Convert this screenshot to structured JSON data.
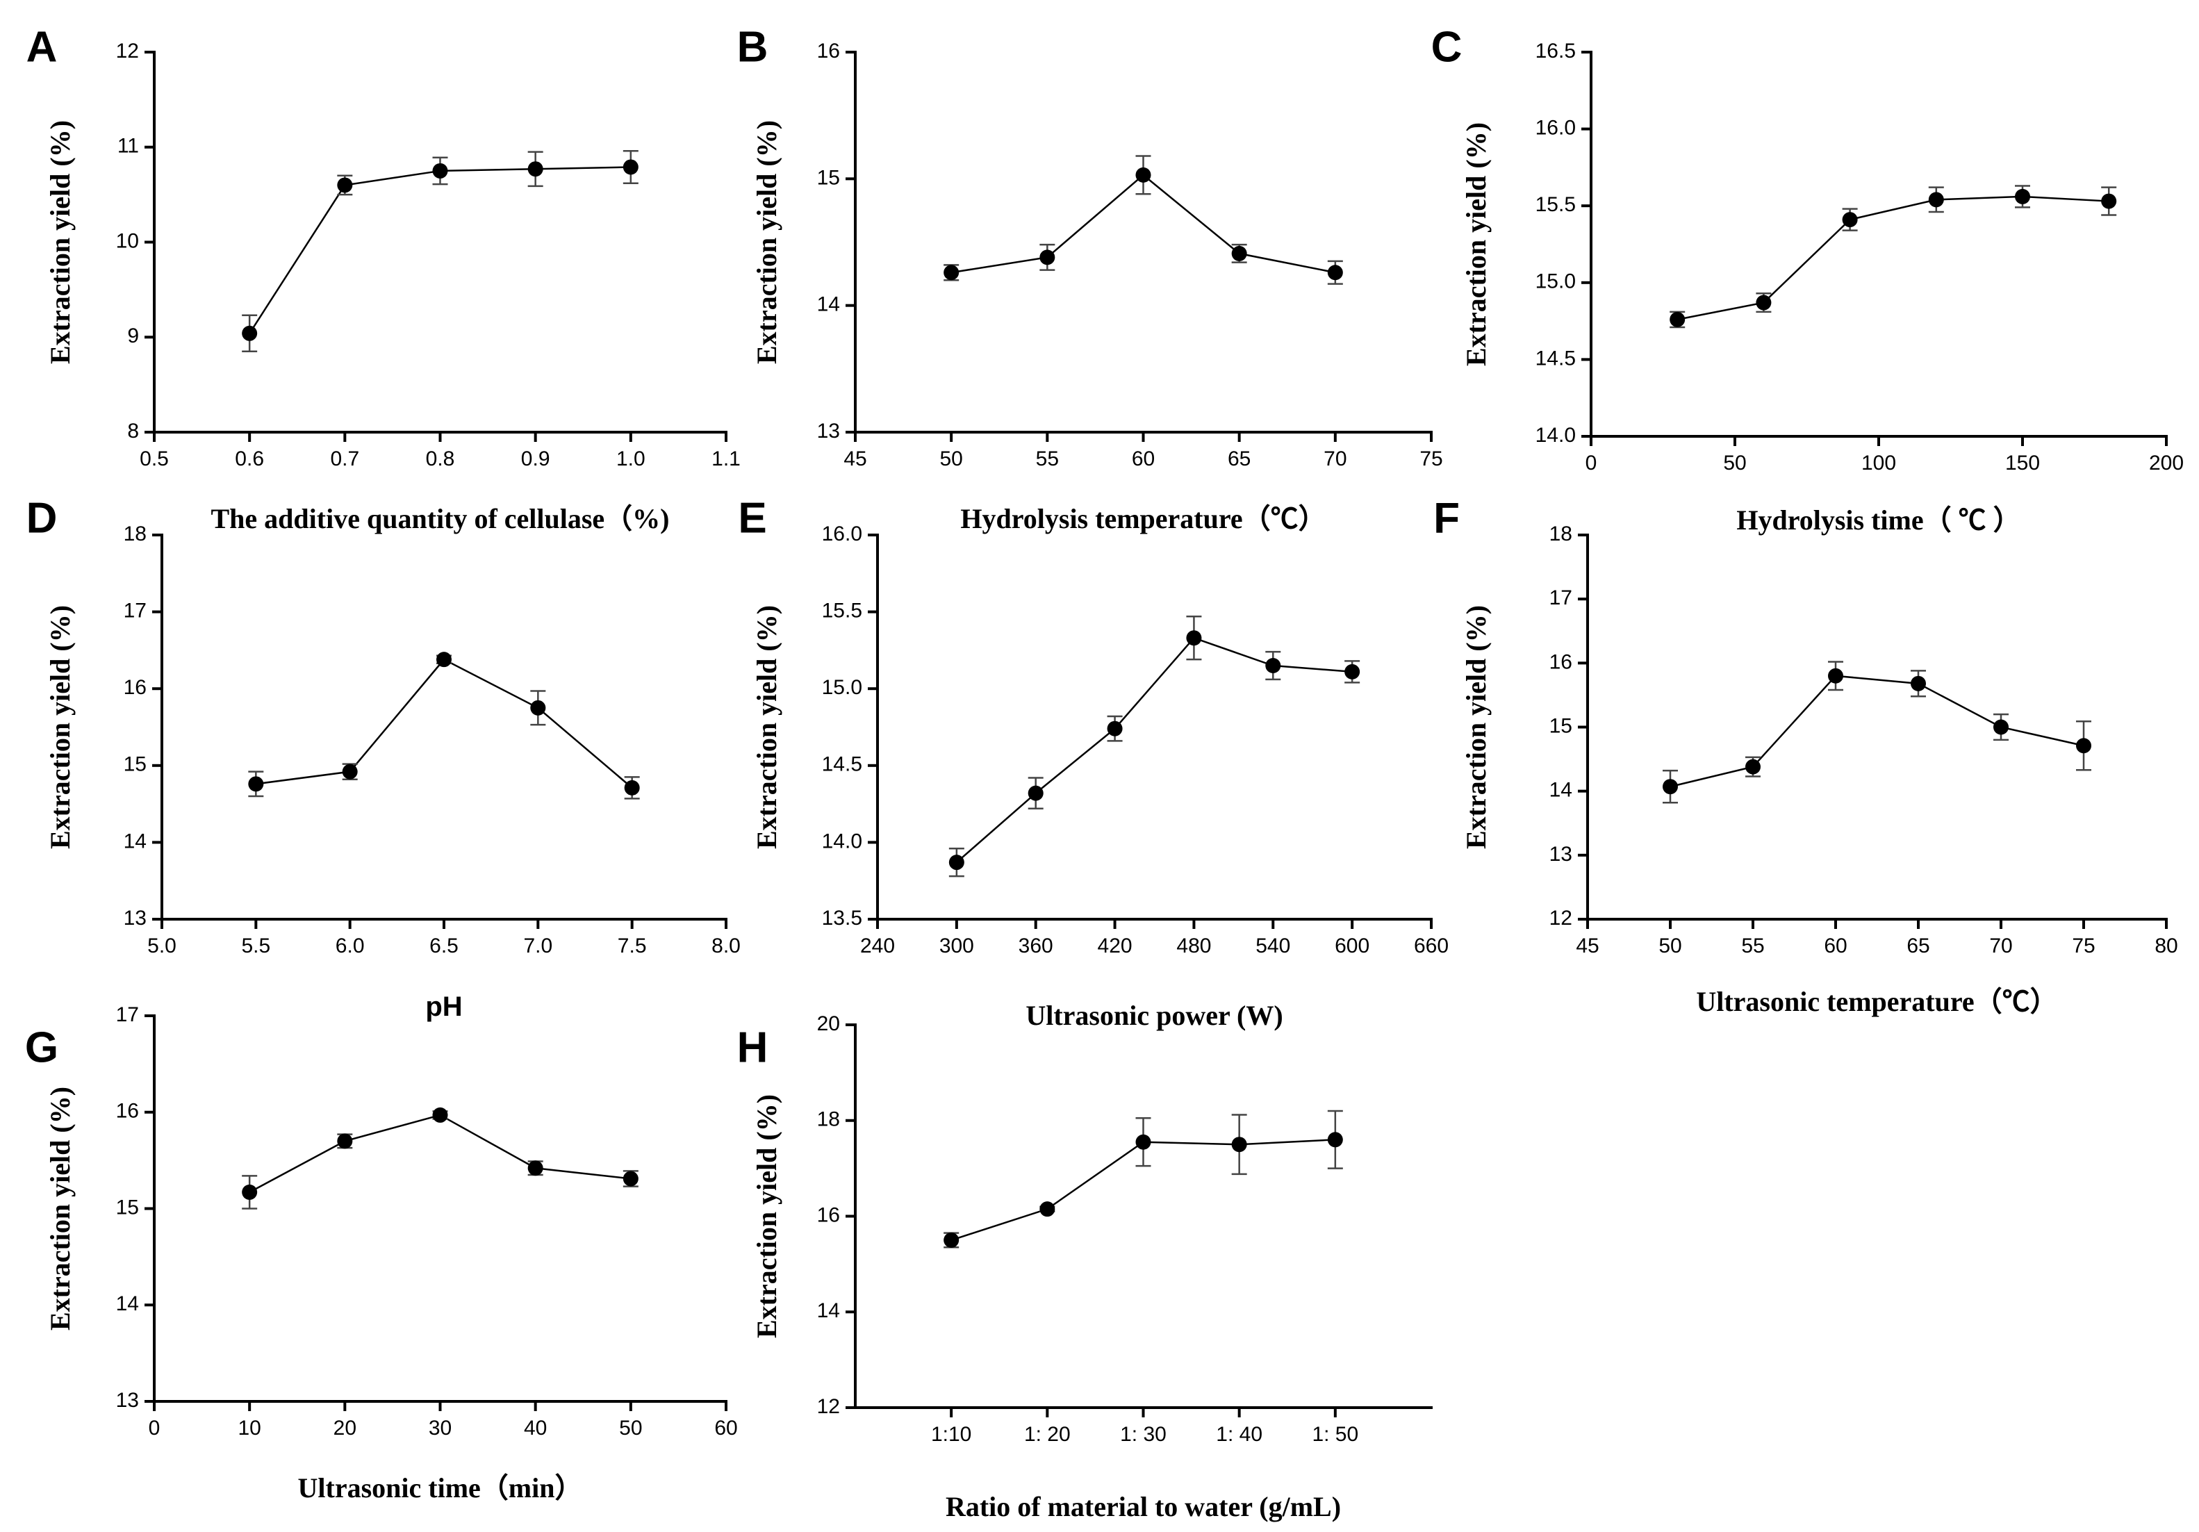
{
  "chart_data": [
    {
      "id": "A",
      "type": "line",
      "panel_label": "A",
      "xlabel": "The additive quantity of cellulase（%)",
      "ylabel": "Extraction yield (%)",
      "xlim": [
        0.5,
        1.1
      ],
      "ylim": [
        8,
        12
      ],
      "xticks": [
        0.5,
        0.6,
        0.7,
        0.8,
        0.9,
        1.0,
        1.1
      ],
      "xtick_labels": [
        "0.5",
        "0.6",
        "0.7",
        "0.8",
        "0.9",
        "1.0",
        "1.1"
      ],
      "yticks": [
        8,
        9,
        10,
        11,
        12
      ],
      "ytick_labels": [
        "8",
        "9",
        "10",
        "11",
        "12"
      ],
      "x": [
        0.6,
        0.7,
        0.8,
        0.9,
        1.0
      ],
      "values": [
        9.04,
        10.6,
        10.75,
        10.77,
        10.79
      ],
      "errors": [
        0.19,
        0.1,
        0.14,
        0.18,
        0.17
      ]
    },
    {
      "id": "B",
      "type": "line",
      "panel_label": "B",
      "xlabel": "Hydrolysis temperature（℃）",
      "ylabel": "Extraction yield (%)",
      "xlim": [
        45,
        75
      ],
      "ylim": [
        13,
        16
      ],
      "xticks": [
        45,
        50,
        55,
        60,
        65,
        70,
        75
      ],
      "xtick_labels": [
        "45",
        "50",
        "55",
        "60",
        "65",
        "70",
        "75"
      ],
      "yticks": [
        13,
        14,
        15,
        16
      ],
      "ytick_labels": [
        "13",
        "14",
        "15",
        "16"
      ],
      "x": [
        50,
        55,
        60,
        65,
        70
      ],
      "values": [
        14.26,
        14.38,
        15.03,
        14.41,
        14.26
      ],
      "errors": [
        0.06,
        0.1,
        0.15,
        0.07,
        0.09
      ]
    },
    {
      "id": "C",
      "type": "line",
      "panel_label": "C",
      "xlabel": "Hydrolysis time（ ℃ ）",
      "ylabel": "Extraction yield (%)",
      "xlim": [
        0,
        200
      ],
      "ylim": [
        14.0,
        16.5
      ],
      "xticks": [
        0,
        50,
        100,
        150,
        200
      ],
      "xtick_labels": [
        "0",
        "50",
        "100",
        "150",
        "200"
      ],
      "yticks": [
        14.0,
        14.5,
        15.0,
        15.5,
        16.0,
        16.5
      ],
      "ytick_labels": [
        "14.0",
        "14.5",
        "15.0",
        "15.5",
        "16.0",
        "16.5"
      ],
      "x": [
        30,
        60,
        90,
        120,
        150,
        180
      ],
      "values": [
        14.76,
        14.87,
        15.41,
        15.54,
        15.56,
        15.53
      ],
      "errors": [
        0.05,
        0.06,
        0.07,
        0.08,
        0.07,
        0.09
      ]
    },
    {
      "id": "D",
      "type": "line",
      "panel_label": "D",
      "xlabel": "pH",
      "ylabel": "Extraction yield (%)",
      "xlim": [
        5.0,
        8.0
      ],
      "ylim": [
        13,
        18
      ],
      "xticks": [
        5.0,
        5.5,
        6.0,
        6.5,
        7.0,
        7.5,
        8.0
      ],
      "xtick_labels": [
        "5.0",
        "5.5",
        "6.0",
        "6.5",
        "7.0",
        "7.5",
        "8.0"
      ],
      "yticks": [
        13,
        14,
        15,
        16,
        17,
        18
      ],
      "ytick_labels": [
        "13",
        "14",
        "15",
        "16",
        "17",
        "18"
      ],
      "x": [
        5.5,
        6.0,
        6.5,
        7.0,
        7.5
      ],
      "values": [
        14.76,
        14.92,
        16.38,
        15.75,
        14.71
      ],
      "errors": [
        0.16,
        0.1,
        0.05,
        0.22,
        0.14
      ]
    },
    {
      "id": "E",
      "type": "line",
      "panel_label": "E",
      "xlabel": "Ultrasonic power (W)",
      "ylabel": "Extraction yield (%)",
      "xlim": [
        240,
        660
      ],
      "ylim": [
        13.5,
        16.0
      ],
      "xticks": [
        240,
        300,
        360,
        420,
        480,
        540,
        600,
        660
      ],
      "xtick_labels": [
        "240",
        "300",
        "360",
        "420",
        "480",
        "540",
        "600",
        "660"
      ],
      "yticks": [
        13.5,
        14.0,
        14.5,
        15.0,
        15.5,
        16.0
      ],
      "ytick_labels": [
        "13.5",
        "14.0",
        "14.5",
        "15.0",
        "15.5",
        "16.0"
      ],
      "x": [
        300,
        360,
        420,
        480,
        540,
        600
      ],
      "values": [
        13.87,
        14.32,
        14.74,
        15.33,
        15.15,
        15.11
      ],
      "errors": [
        0.09,
        0.1,
        0.08,
        0.14,
        0.09,
        0.07
      ]
    },
    {
      "id": "F",
      "type": "line",
      "panel_label": "F",
      "xlabel": "Ultrasonic temperature（℃）",
      "ylabel": "Extraction yield (%)",
      "xlim": [
        45,
        80
      ],
      "ylim": [
        12,
        18
      ],
      "xticks": [
        45,
        50,
        55,
        60,
        65,
        70,
        75,
        80
      ],
      "xtick_labels": [
        "45",
        "50",
        "55",
        "60",
        "65",
        "70",
        "75",
        "80"
      ],
      "yticks": [
        12,
        13,
        14,
        15,
        16,
        17,
        18
      ],
      "ytick_labels": [
        "12",
        "13",
        "14",
        "15",
        "16",
        "17",
        "18"
      ],
      "x": [
        50,
        55,
        60,
        65,
        70,
        75
      ],
      "values": [
        14.07,
        14.38,
        15.8,
        15.68,
        15.0,
        14.71
      ],
      "errors": [
        0.25,
        0.15,
        0.22,
        0.2,
        0.2,
        0.38
      ]
    },
    {
      "id": "G",
      "type": "line",
      "panel_label": "G",
      "xlabel": "Ultrasonic time（min）",
      "ylabel": "Extraction yield (%)",
      "xlim": [
        0,
        60
      ],
      "ylim": [
        13,
        17
      ],
      "xticks": [
        0,
        10,
        20,
        30,
        40,
        50,
        60
      ],
      "xtick_labels": [
        "0",
        "10",
        "20",
        "30",
        "40",
        "50",
        "60"
      ],
      "yticks": [
        13,
        14,
        15,
        16,
        17
      ],
      "ytick_labels": [
        "13",
        "14",
        "15",
        "16",
        "17"
      ],
      "x": [
        10,
        20,
        30,
        40,
        50
      ],
      "values": [
        15.17,
        15.7,
        15.97,
        15.42,
        15.31
      ],
      "errors": [
        0.17,
        0.07,
        0.04,
        0.07,
        0.08
      ]
    },
    {
      "id": "H",
      "type": "line",
      "panel_label": "H",
      "xlabel": "Ratio of material to water (g/mL)",
      "ylabel": "Extraction yield (%)",
      "xlim": [
        0,
        6
      ],
      "ylim": [
        12,
        20
      ],
      "xticks": [
        1,
        2,
        3,
        4,
        5
      ],
      "xtick_labels": [
        "1:10",
        "1: 20",
        "1: 30",
        "1: 40",
        "1: 50"
      ],
      "yticks": [
        12,
        14,
        16,
        18,
        20
      ],
      "ytick_labels": [
        "12",
        "14",
        "16",
        "18",
        "20"
      ],
      "x": [
        1,
        2,
        3,
        4,
        5
      ],
      "values": [
        15.5,
        16.15,
        17.55,
        17.5,
        17.6
      ],
      "errors": [
        0.15,
        0.05,
        0.5,
        0.62,
        0.6
      ]
    }
  ]
}
